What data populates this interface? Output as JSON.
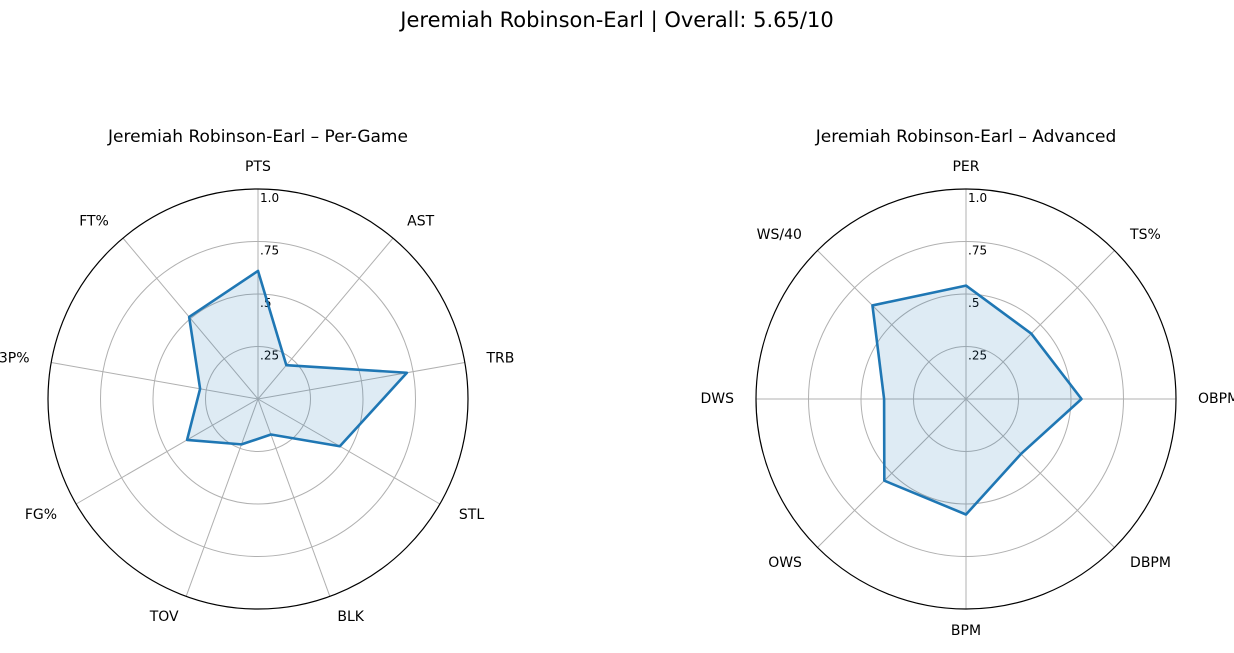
{
  "page": {
    "title": "Jeremiah Robinson-Earl | Overall: 5.65/10"
  },
  "chart_data": [
    {
      "type": "radar",
      "title": "Jeremiah Robinson-Earl – Per-Game",
      "categories": [
        "PTS",
        "AST",
        "TRB",
        "STL",
        "BLK",
        "TOV",
        "FG%",
        "3P%",
        "FT%"
      ],
      "values": [
        0.61,
        0.21,
        0.72,
        0.45,
        0.18,
        0.23,
        0.39,
        0.28,
        0.51
      ],
      "rlim": [
        0,
        1.0
      ],
      "rticks": [
        0.25,
        0.5,
        0.75,
        1.0
      ],
      "rtick_labels": [
        ".25",
        ".5",
        ".75",
        "1.0"
      ],
      "grid": true,
      "line_color": "#1f77b4",
      "fill_color": "#1f77b4"
    },
    {
      "type": "radar",
      "title": "Jeremiah Robinson-Earl – Advanced",
      "categories": [
        "PER",
        "TS%",
        "OBPM",
        "DBPM",
        "BPM",
        "OWS",
        "DWS",
        "WS/40"
      ],
      "values": [
        0.54,
        0.44,
        0.55,
        0.37,
        0.55,
        0.55,
        0.39,
        0.63
      ],
      "rlim": [
        0,
        1.0
      ],
      "rticks": [
        0.25,
        0.5,
        0.75,
        1.0
      ],
      "rtick_labels": [
        ".25",
        ".5",
        ".75",
        "1.0"
      ],
      "grid": true,
      "line_color": "#1f77b4",
      "fill_color": "#1f77b4"
    }
  ]
}
